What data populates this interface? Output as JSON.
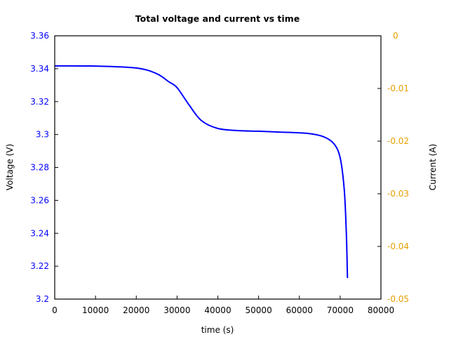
{
  "chart_data": {
    "type": "line",
    "title": "Total voltage and current vs time",
    "xlabel": "time (s)",
    "ylabel": "Voltage (V)",
    "y2label": "Current (A)",
    "xlim": [
      0,
      80000
    ],
    "ylim": [
      3.2,
      3.36
    ],
    "y2lim": [
      -0.05,
      0
    ],
    "grid": false,
    "legend": null,
    "x_ticks": [
      "0",
      "10000",
      "20000",
      "30000",
      "40000",
      "50000",
      "60000",
      "70000",
      "80000"
    ],
    "y_ticks": [
      "3.2",
      "3.22",
      "3.24",
      "3.26",
      "3.28",
      "3.3",
      "3.32",
      "3.34",
      "3.36"
    ],
    "y2_ticks": [
      "-0.05",
      "-0.04",
      "-0.03",
      "-0.02",
      "-0.01",
      "0"
    ],
    "colors": {
      "voltage": "#0000ff",
      "current": "#e69f00",
      "axes": "#000000"
    },
    "series": [
      {
        "name": "Voltage",
        "axis": "left",
        "x": [
          0,
          10000,
          20000,
          25000,
          28000,
          30000,
          33000,
          36000,
          40000,
          45000,
          50000,
          55000,
          62000,
          66000,
          68500,
          70000,
          71000,
          71500,
          71800
        ],
        "y": [
          3.3417,
          3.3416,
          3.3404,
          3.337,
          3.332,
          3.3285,
          3.3178,
          3.3084,
          3.3037,
          3.3024,
          3.302,
          3.3015,
          3.3007,
          3.2986,
          3.2943,
          3.2858,
          3.2666,
          3.241,
          3.2128
        ]
      }
    ]
  }
}
